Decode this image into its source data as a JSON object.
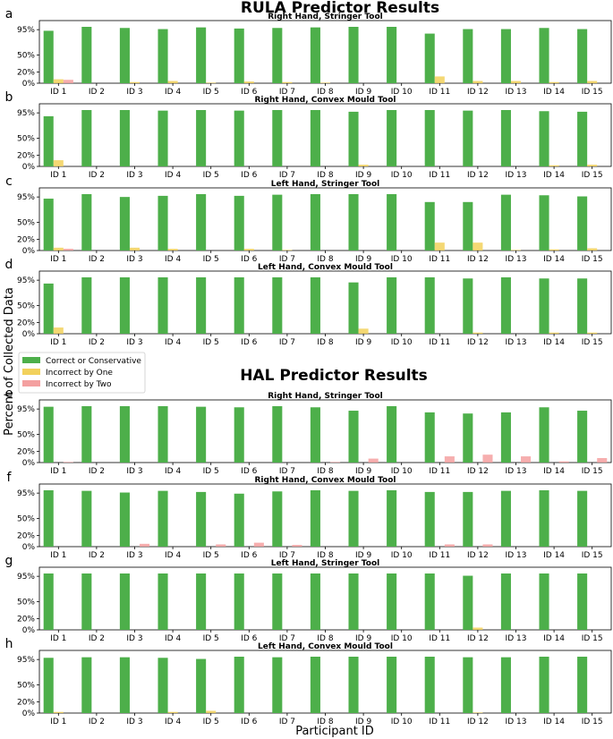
{
  "figure": {
    "rula_title": "RULA Predictor Results",
    "hal_title": "HAL Predictor Results",
    "ylabel": "Percent of Collected Data",
    "xlabel": "Participant ID"
  },
  "legend": [
    {
      "label": "Correct or Conservative",
      "color": "#4daf4a"
    },
    {
      "label": "Incorrect by One",
      "color": "#f2d15c"
    },
    {
      "label": "Incorrect by Two",
      "color": "#f4a0a0"
    }
  ],
  "chart_data": [
    {
      "letter": "a",
      "type": "bar",
      "title": "Right Hand, Stringer Tool",
      "categories": [
        "ID 1",
        "ID 2",
        "ID 3",
        "ID 4",
        "ID 5",
        "ID 6",
        "ID 7",
        "ID 8",
        "ID 9",
        "ID 10",
        "ID 11",
        "ID 12",
        "ID 13",
        "ID 14",
        "ID 15"
      ],
      "yticks": [
        "0%",
        "20%",
        "50%",
        "95%"
      ],
      "ylim": [
        0,
        100
      ],
      "series": [
        {
          "name": "Correct or Conservative",
          "values": [
            93,
            100,
            98,
            96,
            99,
            97,
            98,
            99,
            100,
            100,
            88,
            96,
            96,
            98,
            96
          ]
        },
        {
          "name": "Incorrect by One",
          "values": [
            7,
            0,
            2,
            4,
            1,
            3,
            2,
            1,
            0,
            0,
            12,
            4,
            4,
            2,
            4
          ]
        },
        {
          "name": "Incorrect by Two",
          "values": [
            6,
            0,
            0,
            0,
            0,
            0,
            0,
            0,
            0,
            0,
            0,
            0,
            0,
            0,
            0
          ]
        }
      ]
    },
    {
      "letter": "b",
      "type": "bar",
      "title": "Right Hand, Convex Mould Tool",
      "categories": [
        "ID 1",
        "ID 2",
        "ID 3",
        "ID 4",
        "ID 5",
        "ID 6",
        "ID 7",
        "ID 8",
        "ID 9",
        "ID 10",
        "ID 11",
        "ID 12",
        "ID 13",
        "ID 14",
        "ID 15"
      ],
      "yticks": [
        "0%",
        "20%",
        "50%",
        "95%"
      ],
      "ylim": [
        0,
        100
      ],
      "series": [
        {
          "name": "Correct or Conservative",
          "values": [
            89,
            100,
            100,
            99,
            100,
            99,
            100,
            100,
            97,
            100,
            100,
            99,
            100,
            98,
            97
          ]
        },
        {
          "name": "Incorrect by One",
          "values": [
            11,
            0,
            0,
            0,
            0,
            0,
            0,
            0,
            3,
            0,
            0,
            0,
            0,
            2,
            3
          ]
        },
        {
          "name": "Incorrect by Two",
          "values": [
            0,
            0,
            0,
            0,
            0,
            0,
            0,
            0,
            0,
            0,
            0,
            0,
            0,
            0,
            0
          ]
        }
      ]
    },
    {
      "letter": "c",
      "type": "bar",
      "title": "Left Hand, Stringer Tool",
      "categories": [
        "ID 1",
        "ID 2",
        "ID 3",
        "ID 4",
        "ID 5",
        "ID 6",
        "ID 7",
        "ID 8",
        "ID 9",
        "ID 10",
        "ID 11",
        "ID 12",
        "ID 13",
        "ID 14",
        "ID 15"
      ],
      "yticks": [
        "0%",
        "20%",
        "50%",
        "95%"
      ],
      "ylim": [
        0,
        100
      ],
      "series": [
        {
          "name": "Correct or Conservative",
          "values": [
            92,
            100,
            95,
            97,
            100,
            97,
            99,
            100,
            100,
            100,
            86,
            86,
            99,
            98,
            96
          ]
        },
        {
          "name": "Incorrect by One",
          "values": [
            5,
            0,
            5,
            3,
            0,
            3,
            1,
            0,
            0,
            0,
            14,
            14,
            1,
            2,
            4
          ]
        },
        {
          "name": "Incorrect by Two",
          "values": [
            3,
            0,
            0,
            0,
            0,
            0,
            0,
            0,
            0,
            0,
            0,
            0,
            0,
            0,
            0
          ]
        }
      ]
    },
    {
      "letter": "d",
      "type": "bar",
      "title": "Left Hand, Convex Mould Tool",
      "categories": [
        "ID 1",
        "ID 2",
        "ID 3",
        "ID 4",
        "ID 5",
        "ID 6",
        "ID 7",
        "ID 8",
        "ID 9",
        "ID 10",
        "ID 11",
        "ID 12",
        "ID 13",
        "ID 14",
        "ID 15"
      ],
      "yticks": [
        "0%",
        "20%",
        "50%",
        "95%"
      ],
      "ylim": [
        0,
        100
      ],
      "series": [
        {
          "name": "Correct or Conservative",
          "values": [
            89,
            100,
            100,
            100,
            100,
            100,
            100,
            100,
            91,
            100,
            100,
            98,
            100,
            98,
            98
          ]
        },
        {
          "name": "Incorrect by One",
          "values": [
            11,
            0,
            0,
            0,
            0,
            0,
            0,
            0,
            9,
            0,
            0,
            2,
            0,
            2,
            2
          ]
        },
        {
          "name": "Incorrect by Two",
          "values": [
            0,
            0,
            0,
            0,
            0,
            0,
            0,
            0,
            0,
            0,
            0,
            0,
            0,
            0,
            0
          ]
        }
      ]
    },
    {
      "letter": "e",
      "type": "bar",
      "title": "Right Hand, Stringer Tool",
      "categories": [
        "ID 1",
        "ID 2",
        "ID 3",
        "ID 4",
        "ID 5",
        "ID 6",
        "ID 7",
        "ID 8",
        "ID 9",
        "ID 10",
        "ID 11",
        "ID 12",
        "ID 13",
        "ID 14",
        "ID 15"
      ],
      "yticks": [
        "0%",
        "20%",
        "50%",
        "95%"
      ],
      "ylim": [
        0,
        100
      ],
      "series": [
        {
          "name": "Correct or Conservative",
          "values": [
            99,
            100,
            100,
            100,
            99,
            98,
            100,
            98,
            92,
            100,
            89,
            87,
            89,
            98,
            92
          ]
        },
        {
          "name": "Incorrect by One",
          "values": [
            0,
            0,
            0,
            0,
            0,
            0,
            0,
            0,
            0,
            0,
            0,
            0,
            0,
            0,
            0
          ]
        },
        {
          "name": "Incorrect by Two",
          "values": [
            1,
            0,
            0,
            0,
            0,
            0,
            0,
            1,
            7,
            0,
            11,
            14,
            11,
            2,
            8
          ]
        }
      ]
    },
    {
      "letter": "f",
      "type": "bar",
      "title": "Right Hand, Convex Mould Tool",
      "categories": [
        "ID 1",
        "ID 2",
        "ID 3",
        "ID 4",
        "ID 5",
        "ID 6",
        "ID 7",
        "ID 8",
        "ID 9",
        "ID 10",
        "ID 11",
        "ID 12",
        "ID 13",
        "ID 14",
        "ID 15"
      ],
      "yticks": [
        "0%",
        "20%",
        "50%",
        "95%"
      ],
      "ylim": [
        0,
        100
      ],
      "series": [
        {
          "name": "Correct or Conservative",
          "values": [
            100,
            99,
            96,
            99,
            97,
            94,
            98,
            100,
            99,
            100,
            97,
            97,
            99,
            100,
            99
          ]
        },
        {
          "name": "Incorrect by One",
          "values": [
            0,
            0,
            0,
            0,
            0,
            0,
            0,
            0,
            0,
            0,
            0,
            0,
            0,
            0,
            0
          ]
        },
        {
          "name": "Incorrect by Two",
          "values": [
            0,
            0,
            5,
            0,
            4,
            7,
            3,
            0,
            0,
            0,
            4,
            4,
            0,
            0,
            0
          ]
        }
      ]
    },
    {
      "letter": "g",
      "type": "bar",
      "title": "Left Hand, Stringer Tool",
      "categories": [
        "ID 1",
        "ID 2",
        "ID 3",
        "ID 4",
        "ID 5",
        "ID 6",
        "ID 7",
        "ID 8",
        "ID 9",
        "ID 10",
        "ID 11",
        "ID 12",
        "ID 13",
        "ID 14",
        "ID 15"
      ],
      "yticks": [
        "0%",
        "20%",
        "50%",
        "95%"
      ],
      "ylim": [
        0,
        100
      ],
      "series": [
        {
          "name": "Correct or Conservative",
          "values": [
            100,
            100,
            100,
            100,
            100,
            100,
            100,
            100,
            100,
            100,
            100,
            96,
            100,
            100,
            100
          ]
        },
        {
          "name": "Incorrect by One",
          "values": [
            0,
            0,
            0,
            0,
            0,
            0,
            0,
            0,
            0,
            0,
            0,
            4,
            0,
            0,
            0
          ]
        },
        {
          "name": "Incorrect by Two",
          "values": [
            0,
            0,
            0,
            0,
            0,
            0,
            0,
            0,
            0,
            0,
            0,
            0,
            0,
            0,
            0
          ]
        }
      ]
    },
    {
      "letter": "h",
      "type": "bar",
      "title": "Left Hand, Convex Mould Tool",
      "categories": [
        "ID 1",
        "ID 2",
        "ID 3",
        "ID 4",
        "ID 5",
        "ID 6",
        "ID 7",
        "ID 8",
        "ID 9",
        "ID 10",
        "ID 11",
        "ID 12",
        "ID 13",
        "ID 14",
        "ID 15"
      ],
      "yticks": [
        "0%",
        "20%",
        "50%",
        "95%"
      ],
      "ylim": [
        0,
        100
      ],
      "series": [
        {
          "name": "Correct or Conservative",
          "values": [
            98,
            99,
            99,
            98,
            96,
            100,
            99,
            100,
            100,
            100,
            100,
            99,
            99,
            100,
            100
          ]
        },
        {
          "name": "Incorrect by One",
          "values": [
            2,
            0,
            0,
            2,
            4,
            0,
            0,
            0,
            0,
            0,
            0,
            1,
            0,
            0,
            0
          ]
        },
        {
          "name": "Incorrect by Two",
          "values": [
            0,
            0,
            0,
            0,
            0,
            0,
            0,
            0,
            0,
            0,
            0,
            0,
            0,
            0,
            0
          ]
        }
      ]
    }
  ]
}
